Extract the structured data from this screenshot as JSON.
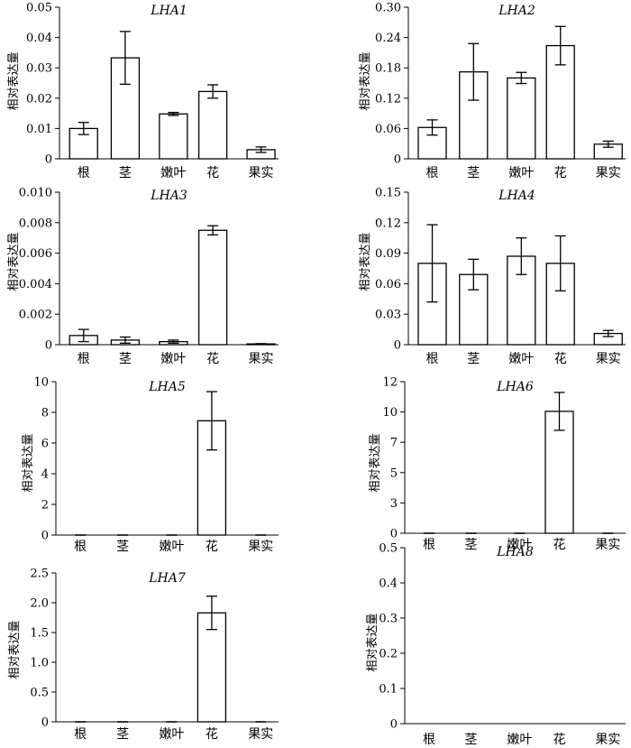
{
  "figure": {
    "colors": {
      "ink": "#000000",
      "bar_fill": "#ffffff"
    }
  },
  "chart_data": [
    {
      "type": "bar",
      "title": "LHA1",
      "ylabel": "相对表达量",
      "categories": [
        "根",
        "茎",
        "嫩叶",
        "花",
        "果实"
      ],
      "values": [
        0.01,
        0.0333,
        0.0148,
        0.0222,
        0.003
      ],
      "errors": [
        0.002,
        0.0087,
        0.0005,
        0.0022,
        0.0009
      ],
      "ylim": [
        0,
        0.05
      ],
      "ytick_labels": [
        "0",
        "0.01",
        "0.02",
        "0.03",
        "0.04",
        "0.05"
      ]
    },
    {
      "type": "bar",
      "title": "LHA2",
      "ylabel": "相对表达量",
      "categories": [
        "根",
        "茎",
        "嫩叶",
        "花",
        "果实"
      ],
      "values": [
        0.062,
        0.172,
        0.16,
        0.224,
        0.029
      ],
      "errors": [
        0.015,
        0.056,
        0.011,
        0.038,
        0.006
      ],
      "ylim": [
        0,
        0.3
      ],
      "ytick_labels": [
        "0",
        "0.06",
        "0.12",
        "0.18",
        "0.24",
        "0.30"
      ]
    },
    {
      "type": "bar",
      "title": "LHA3",
      "ylabel": "相对表达量",
      "categories": [
        "根",
        "茎",
        "嫩叶",
        "花",
        "果实"
      ],
      "values": [
        0.0006,
        0.0003,
        0.0002,
        0.0075,
        5e-05
      ],
      "errors": [
        0.0004,
        0.0002,
        0.0001,
        0.0003,
        2e-05
      ],
      "ylim": [
        0,
        0.01
      ],
      "ytick_labels": [
        "0",
        "0.002",
        "0.004",
        "0.006",
        "0.008",
        "0.010"
      ]
    },
    {
      "type": "bar",
      "title": "LHA4",
      "ylabel": "相对表达量",
      "categories": [
        "根",
        "茎",
        "嫩叶",
        "花",
        "果实"
      ],
      "values": [
        0.08,
        0.069,
        0.087,
        0.08,
        0.011
      ],
      "errors": [
        0.038,
        0.015,
        0.018,
        0.027,
        0.003
      ],
      "ylim": [
        0,
        0.15
      ],
      "ytick_labels": [
        "0",
        "0.03",
        "0.06",
        "0.09",
        "0.12",
        "0.15"
      ]
    },
    {
      "type": "bar",
      "title": "LHA5",
      "ylabel": "相对表达量",
      "categories": [
        "根",
        "茎",
        "嫩叶",
        "花",
        "果实"
      ],
      "values": [
        0,
        0,
        0,
        7.45,
        0
      ],
      "errors": [
        0,
        0,
        0,
        1.9,
        0
      ],
      "ylim": [
        0,
        10
      ],
      "ytick_labels": [
        "0",
        "2",
        "4",
        "6",
        "8",
        "10"
      ]
    },
    {
      "type": "bar",
      "title": "LHA6",
      "ylabel": "相对表达量",
      "categories": [
        "根",
        "茎",
        "嫩叶",
        "花",
        "果实"
      ],
      "values": [
        0,
        0,
        0,
        9.65,
        0
      ],
      "errors": [
        0,
        0,
        0,
        1.5,
        0
      ],
      "ylim": [
        0,
        12
      ],
      "ytick_labels": [
        "0",
        "3",
        "5",
        "7",
        "10",
        "12"
      ]
    },
    {
      "type": "bar",
      "title": "LHA7",
      "ylabel": "相对表达量",
      "categories": [
        "根",
        "茎",
        "嫩叶",
        "花",
        "果实"
      ],
      "values": [
        0,
        0,
        0,
        1.83,
        0
      ],
      "errors": [
        0,
        0,
        0,
        0.28,
        0
      ],
      "ylim": [
        0,
        2.5
      ],
      "ytick_labels": [
        "0",
        "0.5",
        "1.0",
        "1.5",
        "2.0",
        "2.5"
      ]
    },
    {
      "type": "bar",
      "title": "LHA8",
      "ylabel": "相对表达量",
      "categories": [
        "根",
        "茎",
        "嫩叶",
        "花",
        "果实"
      ],
      "values": [
        0,
        0,
        0,
        0,
        0
      ],
      "errors": [
        0,
        0,
        0,
        0,
        0
      ],
      "ylim": [
        0,
        0.5
      ],
      "ytick_labels": [
        "0",
        "0.1",
        "0.2",
        "0.3",
        "0.4",
        "0.5"
      ]
    }
  ]
}
